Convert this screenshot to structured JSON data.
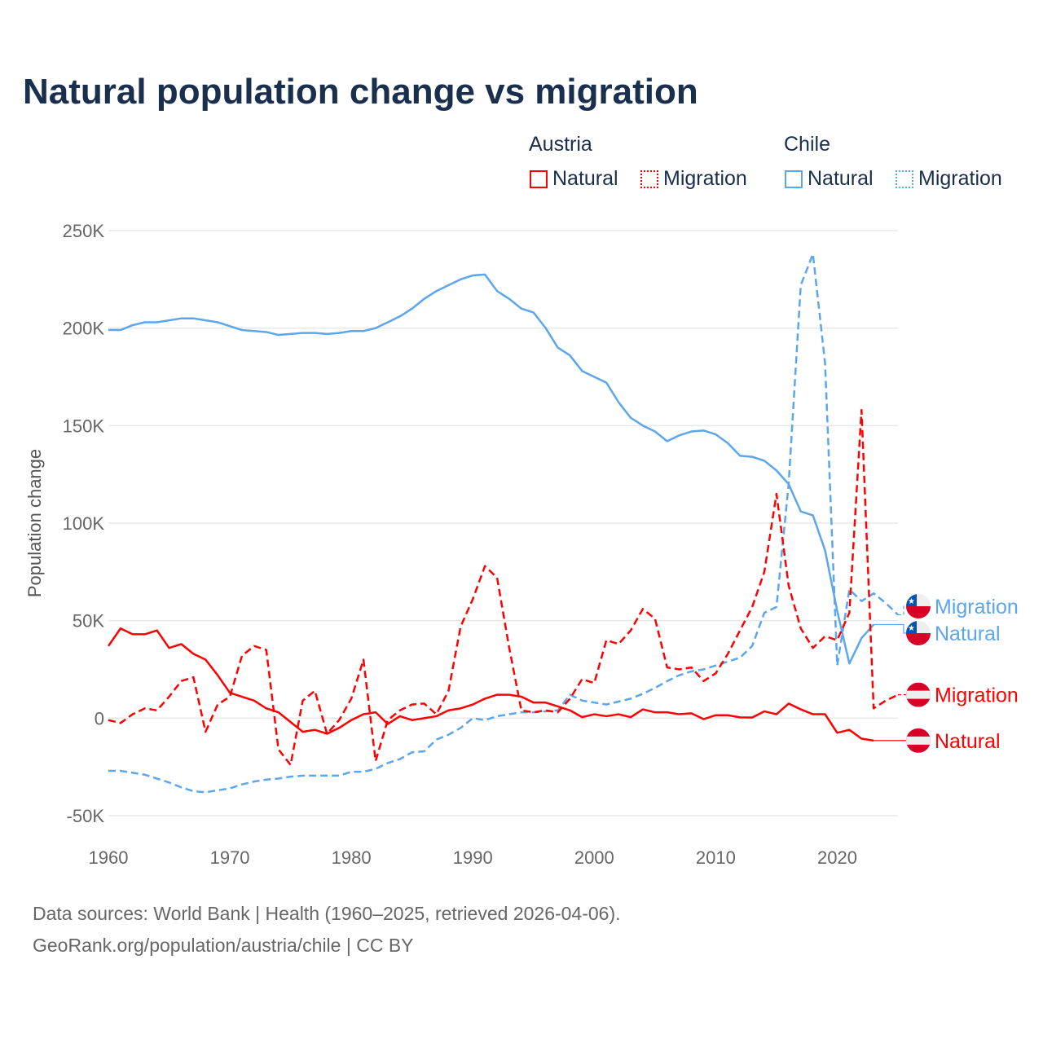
{
  "title": "Natural population change vs migration",
  "legend": {
    "groups": [
      {
        "name": "Austria",
        "color": "#ff0000",
        "items": [
          "Natural",
          "Migration"
        ]
      },
      {
        "name": "Chile",
        "color": "#5ba6ec",
        "items": [
          "Natural",
          "Migration"
        ]
      }
    ]
  },
  "sources": {
    "line1": "Data sources: World Bank | Health (1960–2025, retrieved 2026-04-06).",
    "line2": "GeoRank.org/population/austria/chile | CC BY"
  },
  "chart_data": {
    "type": "line",
    "ylabel": "Population change",
    "xlabel": "",
    "xlim": [
      1960,
      2025
    ],
    "ylim": [
      -50000,
      250000
    ],
    "x_ticks": [
      "1960",
      "1970",
      "1980",
      "1990",
      "2000",
      "2010",
      "2020"
    ],
    "y_ticks": [
      {
        "v": 250000,
        "label": "250K"
      },
      {
        "v": 200000,
        "label": "200K"
      },
      {
        "v": 150000,
        "label": "150K"
      },
      {
        "v": 100000,
        "label": "100K"
      },
      {
        "v": 50000,
        "label": "50K"
      },
      {
        "v": 0,
        "label": "0"
      },
      {
        "v": -50000,
        "label": "-50K"
      }
    ],
    "grid": true,
    "series": [
      {
        "name": "Chile Migration",
        "country": "Chile",
        "kind": "Migration",
        "color": "#5ba6ec",
        "dashed": true,
        "start": 1960,
        "values": [
          -27000,
          -27000,
          -28000,
          -29000,
          -31000,
          -33000,
          -35500,
          -37500,
          -38000,
          -37000,
          -36000,
          -34000,
          -32500,
          -31500,
          -31000,
          -30000,
          -29500,
          -29500,
          -29500,
          -29500,
          -27500,
          -27500,
          -26000,
          -23000,
          -21000,
          -17500,
          -17000,
          -11000,
          -8500,
          -5000,
          0,
          -1000,
          1000,
          2000,
          3000,
          3000,
          3500,
          4000,
          12000,
          9000,
          8000,
          7000,
          8500,
          10000,
          12500,
          15500,
          19000,
          22000,
          24000,
          25000,
          27000,
          29000,
          31000,
          37000,
          54000,
          57000,
          120000,
          222000,
          238000,
          182000,
          27000,
          66000,
          60000,
          64000,
          59000,
          53000
        ]
      },
      {
        "name": "Chile Natural",
        "country": "Chile",
        "kind": "Natural",
        "color": "#5ba6ec",
        "dashed": false,
        "start": 1960,
        "values": [
          199000,
          199000,
          201500,
          203000,
          203000,
          204000,
          205000,
          205000,
          204000,
          203000,
          201000,
          199000,
          198500,
          198000,
          196500,
          197000,
          197500,
          197500,
          197000,
          197500,
          198500,
          198500,
          200000,
          203000,
          206000,
          210000,
          215000,
          219000,
          222000,
          225000,
          227000,
          227500,
          219000,
          215000,
          210000,
          208000,
          200000,
          190000,
          186000,
          178000,
          175000,
          172000,
          162000,
          154000,
          150000,
          147000,
          142000,
          145000,
          147000,
          147500,
          145500,
          141000,
          134500,
          134000,
          132000,
          127000,
          120000,
          106000,
          104000,
          86000,
          55000,
          28000,
          41000,
          48000
        ]
      },
      {
        "name": "Austria Migration",
        "country": "Austria",
        "kind": "Migration",
        "color": "#ff0000",
        "dashed": true,
        "start": 1960,
        "values": [
          -1000,
          -2500,
          2000,
          5000,
          4000,
          11000,
          19000,
          21000,
          -7000,
          7000,
          11000,
          32000,
          37000,
          35000,
          -16000,
          -24000,
          9000,
          14000,
          -8000,
          -1000,
          10000,
          30000,
          -22000,
          -1000,
          4000,
          7000,
          7500,
          2000,
          14000,
          47000,
          61000,
          78000,
          72000,
          36000,
          4000,
          3000,
          4000,
          3000,
          10000,
          20000,
          18000,
          40000,
          38000,
          45000,
          56000,
          51000,
          26000,
          25000,
          26000,
          19000,
          23000,
          33000,
          45000,
          57000,
          75000,
          115000,
          68000,
          46000,
          36000,
          42000,
          40000,
          54000,
          158000,
          5000,
          9000,
          12000
        ]
      },
      {
        "name": "Austria Natural",
        "country": "Austria",
        "kind": "Natural",
        "color": "#ff0000",
        "dashed": false,
        "start": 1960,
        "values": [
          37000,
          46000,
          43000,
          43000,
          45000,
          36000,
          38000,
          33000,
          30000,
          22000,
          13000,
          11000,
          9000,
          5000,
          3000,
          -2000,
          -7000,
          -6000,
          -8000,
          -5000,
          -1000,
          2000,
          3000,
          -3000,
          1000,
          -1000,
          0,
          1000,
          4000,
          5000,
          7000,
          10000,
          12000,
          12000,
          11000,
          8000,
          8000,
          6000,
          4000,
          500,
          2000,
          1000,
          2000,
          500,
          4500,
          3000,
          3000,
          2000,
          2500,
          -500,
          1500,
          1500,
          400,
          300,
          3500,
          2000,
          7500,
          4500,
          2000,
          2000,
          -7500,
          -6000,
          -10500,
          -11500
        ]
      }
    ]
  }
}
